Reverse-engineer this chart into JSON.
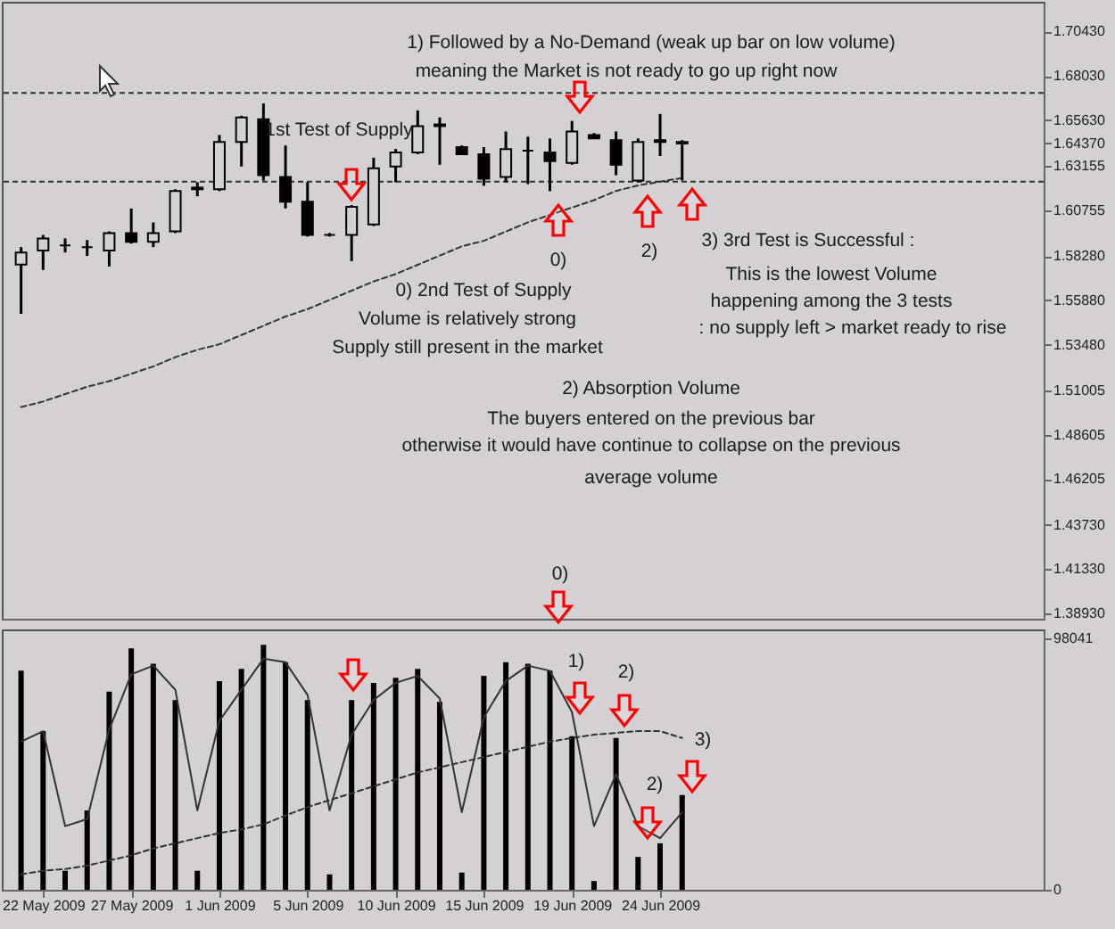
{
  "chart_data": [
    {
      "type": "candlestick",
      "color": "#000000",
      "tick_labels": "y",
      "categories": [
        null,
        null,
        null,
        null,
        null,
        null,
        null,
        null,
        null,
        null,
        null,
        null,
        null,
        null,
        null,
        null,
        null,
        null,
        null,
        null,
        null,
        null,
        null,
        null,
        null,
        null,
        null,
        null,
        null,
        null,
        null
      ],
      "ohlc": [
        [
          1.5781,
          1.5876,
          1.5515,
          1.5847
        ],
        [
          1.5857,
          1.5942,
          1.5752,
          1.5923
        ],
        [
          1.5885,
          1.5923,
          1.5847,
          1.5885
        ],
        [
          1.5876,
          1.5914,
          1.5828,
          1.5876
        ],
        [
          1.5857,
          1.5961,
          1.5771,
          1.5952
        ],
        [
          1.5952,
          1.6085,
          1.5895,
          1.5904
        ],
        [
          1.5904,
          1.6009,
          1.5876,
          1.5952
        ],
        [
          1.5961,
          1.6189,
          1.5952,
          1.6179
        ],
        [
          1.6189,
          1.6227,
          1.6151,
          1.6198
        ],
        [
          1.6189,
          1.6483,
          1.6179,
          1.6445
        ],
        [
          1.6445,
          1.6587,
          1.6312,
          1.6578
        ],
        [
          1.6568,
          1.6654,
          1.6236,
          1.6265
        ],
        [
          1.6255,
          1.6426,
          1.6085,
          1.6122
        ],
        [
          1.6122,
          1.6227,
          1.5933,
          1.5942
        ],
        [
          1.5942,
          1.5952,
          1.5933,
          1.5942
        ],
        [
          1.5942,
          1.6103,
          1.58,
          1.6094
        ],
        [
          1.5999,
          1.636,
          1.599,
          1.6303
        ],
        [
          1.6312,
          1.6407,
          1.6227,
          1.6388
        ],
        [
          1.6388,
          1.6616,
          1.6379,
          1.6531
        ],
        [
          1.654,
          1.6578,
          1.6322,
          1.6531
        ],
        [
          1.6417,
          1.6426,
          1.6379,
          1.6379
        ],
        [
          1.6379,
          1.6417,
          1.6208,
          1.6246
        ],
        [
          1.6255,
          1.6502,
          1.6227,
          1.6407
        ],
        [
          1.6398,
          1.6474,
          1.6217,
          1.6398
        ],
        [
          1.6388,
          1.6464,
          1.6179,
          1.6341
        ],
        [
          1.6331,
          1.6559,
          1.6322,
          1.6502
        ],
        [
          1.6483,
          1.6493,
          1.6464,
          1.6464
        ],
        [
          1.6455,
          1.6502,
          1.6265,
          1.6322
        ],
        [
          1.6236,
          1.6464,
          1.6227,
          1.6445
        ],
        [
          1.6455,
          1.6597,
          1.6369,
          1.6445
        ],
        [
          1.6445,
          1.6455,
          1.6236,
          1.6437
        ]
      ],
      "series": [
        {
          "type": "line",
          "color": "#333333",
          "line_style": "dashed",
          "values": [
            1.501,
            1.504,
            1.508,
            1.512,
            1.515,
            1.519,
            1.523,
            1.528,
            1.532,
            1.535,
            1.54,
            1.545,
            1.55,
            1.554,
            1.559,
            1.564,
            1.569,
            1.573,
            1.578,
            1.583,
            1.588,
            1.591,
            1.596,
            1.601,
            1.605,
            1.609,
            1.613,
            1.618,
            1.621,
            1.623,
            1.625
          ]
        }
      ],
      "ylim": [
        1.3864,
        1.7204
      ],
      "yticks": [
        {
          "value": 1.7043,
          "label": "1.70430"
        },
        {
          "value": 1.6803,
          "label": "1.68030"
        },
        {
          "value": 1.6563,
          "label": "1.65630"
        },
        {
          "value": 1.6437,
          "label": "1.64370"
        },
        {
          "value": 1.63155,
          "label": "1.63155"
        },
        {
          "value": 1.60755,
          "label": "1.60755"
        },
        {
          "value": 1.5828,
          "label": "1.58280"
        },
        {
          "value": 1.5588,
          "label": "1.55880"
        },
        {
          "value": 1.5348,
          "label": "1.53480"
        },
        {
          "value": 1.51005,
          "label": "1.51005"
        },
        {
          "value": 1.48605,
          "label": "1.48605"
        },
        {
          "value": 1.46205,
          "label": "1.46205"
        },
        {
          "value": 1.4373,
          "label": "1.43730"
        },
        {
          "value": 1.4133,
          "label": "1.41330"
        },
        {
          "value": 1.3893,
          "label": "1.38930"
        }
      ],
      "ref_lines": [
        {
          "axis": "y",
          "value": 1.6711,
          "color": "#333333",
          "line_style": "dashed"
        },
        {
          "axis": "y",
          "value": 1.623,
          "color": "#333333",
          "line_style": "dashed"
        }
      ],
      "annotations": [
        "1) Followed by a No-Demand (weak up bar on low volume)",
        "meaning the Market is not ready to go up right now",
        "1st Test of Supply",
        "0)",
        "2)",
        "3)  3rd Test is Successful :",
        "This is the lowest Volume",
        "happening among the 3 tests",
        ": no supply left > market ready to rise",
        "0)  2nd Test of Supply",
        "Volume is relatively strong",
        "Supply still present in the market",
        "2) Absorption Volume",
        "The buyers entered on the previous bar",
        "otherwise it would have continue to collapse on the previous",
        "average volume",
        "0)"
      ]
    },
    {
      "type": "bar",
      "categories": [
        null,
        "22 May 2009",
        null,
        null,
        null,
        "27 May 2009",
        null,
        null,
        null,
        "1 Jun 2009",
        null,
        null,
        null,
        "5 Jun 2009",
        null,
        null,
        null,
        "10 Jun 2009",
        null,
        null,
        null,
        "15 Jun 2009",
        null,
        null,
        null,
        "19 Jun 2009",
        null,
        null,
        null,
        "24 Jun 2009",
        null
      ],
      "series": [
        {
          "type": "bar",
          "color": "#000000",
          "values": [
            85300,
            61800,
            7400,
            30900,
            77200,
            94000,
            88000,
            73900,
            7400,
            81300,
            86000,
            95400,
            88600,
            73900,
            6000,
            73900,
            80600,
            82600,
            86000,
            73200,
            6700,
            83300,
            88600,
            88000,
            85300,
            59800,
            3400,
            59100,
            12800,
            18100,
            36900
          ]
        },
        {
          "type": "line",
          "color": "#333333",
          "values": [
            57700,
            61800,
            24800,
            27500,
            62400,
            83900,
            87300,
            77900,
            30900,
            65800,
            77900,
            90000,
            88600,
            75900,
            30900,
            60400,
            73900,
            80600,
            83300,
            74500,
            30200,
            67200,
            81300,
            87300,
            85300,
            69200,
            24800,
            45000,
            24800,
            20100,
            30200
          ]
        },
        {
          "type": "line",
          "color": "#333333",
          "line_style": "dashed",
          "values": [
            6000,
            7400,
            8100,
            9400,
            11400,
            13400,
            16100,
            18100,
            20100,
            22100,
            23500,
            25500,
            28900,
            32200,
            34900,
            37600,
            40300,
            43000,
            45700,
            47700,
            49700,
            51700,
            53700,
            55700,
            57700,
            59100,
            60400,
            61100,
            61800,
            61800,
            59100
          ]
        }
      ],
      "ylim": [
        0,
        101400
      ],
      "yticks": [
        0,
        98041
      ],
      "annotations": [
        "1)",
        "2)",
        "3)",
        "2)"
      ]
    }
  ]
}
